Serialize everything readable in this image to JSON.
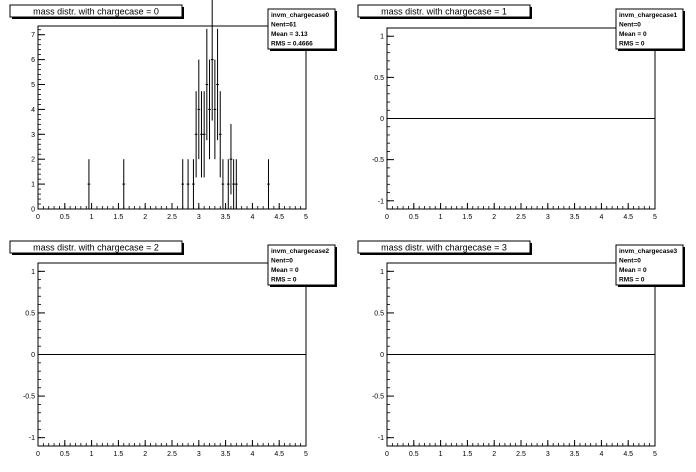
{
  "chart_data": [
    {
      "type": "bar",
      "title": "mass distr. with chargecase = 0",
      "stats": {
        "name": "invm_chargecase0",
        "entries": "Nent=61",
        "mean": "Mean = 3.13",
        "rms": "RMS = 0.4666"
      },
      "xlim": [
        0,
        5
      ],
      "ylim": [
        0,
        7.35
      ],
      "xticks": [
        "0",
        "0.5",
        "1",
        "1.5",
        "2",
        "2.5",
        "3",
        "3.5",
        "4",
        "4.5",
        "5"
      ],
      "yticks": [
        "0",
        "1",
        "2",
        "3",
        "4",
        "5",
        "6",
        "7"
      ],
      "bin_width": 0.05,
      "bins": [
        {
          "x": 0.95,
          "y": 1
        },
        {
          "x": 1.6,
          "y": 1
        },
        {
          "x": 2.7,
          "y": 1
        },
        {
          "x": 2.8,
          "y": 1
        },
        {
          "x": 2.9,
          "y": 1
        },
        {
          "x": 2.95,
          "y": 3
        },
        {
          "x": 3.0,
          "y": 4
        },
        {
          "x": 3.05,
          "y": 3
        },
        {
          "x": 3.1,
          "y": 3
        },
        {
          "x": 3.15,
          "y": 5
        },
        {
          "x": 3.2,
          "y": 4
        },
        {
          "x": 3.25,
          "y": 6
        },
        {
          "x": 3.3,
          "y": 4
        },
        {
          "x": 3.35,
          "y": 5
        },
        {
          "x": 3.4,
          "y": 3
        },
        {
          "x": 3.45,
          "y": 1
        },
        {
          "x": 3.55,
          "y": 1
        },
        {
          "x": 3.6,
          "y": 2
        },
        {
          "x": 3.65,
          "y": 1
        },
        {
          "x": 3.7,
          "y": 1
        },
        {
          "x": 4.3,
          "y": 1
        }
      ]
    },
    {
      "type": "bar",
      "title": "mass distr. with chargecase = 1",
      "stats": {
        "name": "invm_chargecase1",
        "entries": "Nent=0",
        "mean": "Mean =   0",
        "rms": "RMS =   0"
      },
      "xlim": [
        0,
        5
      ],
      "ylim": [
        -1.1,
        1.1
      ],
      "xticks": [
        "0",
        "0.5",
        "1",
        "1.5",
        "2",
        "2.5",
        "3",
        "3.5",
        "4",
        "4.5",
        "5"
      ],
      "yticks": [
        "-1",
        "-0.5",
        "0",
        "0.5",
        "1"
      ],
      "bin_width": 0.05,
      "bins": []
    },
    {
      "type": "bar",
      "title": "mass distr. with chargecase = 2",
      "stats": {
        "name": "invm_chargecase2",
        "entries": "Nent=0",
        "mean": "Mean =   0",
        "rms": "RMS =   0"
      },
      "xlim": [
        0,
        5
      ],
      "ylim": [
        -1.1,
        1.1
      ],
      "xticks": [
        "0",
        "0.5",
        "1",
        "1.5",
        "2",
        "2.5",
        "3",
        "3.5",
        "4",
        "4.5",
        "5"
      ],
      "yticks": [
        "-1",
        "-0.5",
        "0",
        "0.5",
        "1"
      ],
      "bin_width": 0.05,
      "bins": []
    },
    {
      "type": "bar",
      "title": "mass distr. with chargecase = 3",
      "stats": {
        "name": "invm_chargecase3",
        "entries": "Nent=0",
        "mean": "Mean =   0",
        "rms": "RMS =   0"
      },
      "xlim": [
        0,
        5
      ],
      "ylim": [
        -1.1,
        1.1
      ],
      "xticks": [
        "0",
        "0.5",
        "1",
        "1.5",
        "2",
        "2.5",
        "3",
        "3.5",
        "4",
        "4.5",
        "5"
      ],
      "yticks": [
        "-1",
        "-0.5",
        "0",
        "0.5",
        "1"
      ],
      "bin_width": 0.05,
      "bins": []
    }
  ]
}
